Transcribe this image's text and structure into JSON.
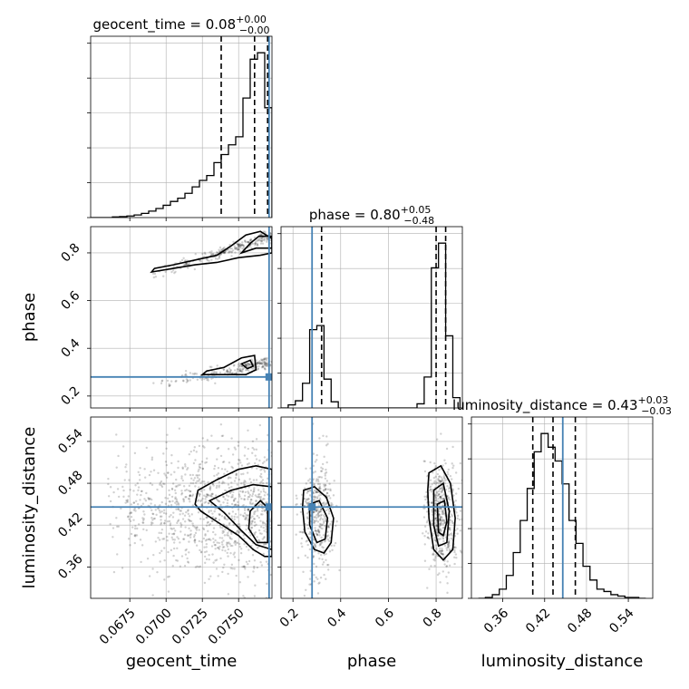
{
  "chart_data": {
    "type": "corner",
    "parameters": [
      {
        "name": "geocent_time",
        "axis_label": "geocent_time",
        "title_text": "geocent_time = 0.08",
        "title_plus": "+0.00",
        "title_minus": "−0.00",
        "range": [
          0.0648,
          0.0773
        ],
        "ticks": [
          0.0675,
          0.07,
          0.0725,
          0.075
        ],
        "tick_labels": [
          "0.0675",
          "0.0700",
          "0.0725",
          "0.0750"
        ],
        "truth": 0.0771,
        "quantiles": [
          0.0738,
          0.0761,
          0.077
        ],
        "hist_edges": [
          0.0648,
          0.0653,
          0.0658,
          0.0663,
          0.0668,
          0.0673,
          0.0678,
          0.0683,
          0.0688,
          0.0693,
          0.0698,
          0.0703,
          0.0708,
          0.0713,
          0.0718,
          0.0723,
          0.0728,
          0.0733,
          0.0738,
          0.0743,
          0.0748,
          0.0753,
          0.0758,
          0.0763,
          0.0768,
          0.0773
        ],
        "hist_counts": [
          0,
          0,
          0,
          0.2,
          0.3,
          0.5,
          0.8,
          1.3,
          2.0,
          2.8,
          3.8,
          5.0,
          6.0,
          7.5,
          9.5,
          11.5,
          13.0,
          17.0,
          19.5,
          22.5,
          25.0,
          37.0,
          49.0,
          51.0,
          34.0
        ]
      },
      {
        "name": "phase",
        "axis_label": "phase",
        "title_text": "phase = 0.80",
        "title_plus": "+0.05",
        "title_minus": "−0.48",
        "range": [
          0.15,
          0.91
        ],
        "ticks": [
          0.2,
          0.4,
          0.6,
          0.8
        ],
        "tick_labels": [
          "0.2",
          "0.4",
          "0.6",
          "0.8"
        ],
        "truth": 0.28,
        "quantiles": [
          0.32,
          0.8,
          0.84
        ],
        "hist_edges": [
          0.15,
          0.18,
          0.21,
          0.24,
          0.27,
          0.3,
          0.33,
          0.36,
          0.39,
          0.42,
          0.45,
          0.48,
          0.51,
          0.54,
          0.57,
          0.6,
          0.63,
          0.66,
          0.69,
          0.72,
          0.75,
          0.78,
          0.81,
          0.84,
          0.87,
          0.9
        ],
        "hist_counts": [
          0,
          1.5,
          3.5,
          12.0,
          38.0,
          40.0,
          14.0,
          3.0,
          0,
          0,
          0,
          0,
          0,
          0,
          0,
          0,
          0,
          0,
          0,
          2.0,
          15.0,
          68.0,
          80.0,
          35.0,
          5.0
        ]
      },
      {
        "name": "luminosity_distance",
        "axis_label": "luminosity_distance",
        "title_text": "luminosity_distance = 0.43",
        "title_plus": "+0.03",
        "title_minus": "−0.03",
        "range": [
          0.315,
          0.575
        ],
        "ticks": [
          0.36,
          0.42,
          0.48,
          0.54
        ],
        "tick_labels": [
          "0.36",
          "0.42",
          "0.48",
          "0.54"
        ],
        "truth": 0.446,
        "quantiles": [
          0.403,
          0.432,
          0.464
        ],
        "hist_edges": [
          0.325,
          0.335,
          0.345,
          0.355,
          0.365,
          0.375,
          0.385,
          0.395,
          0.405,
          0.415,
          0.425,
          0.435,
          0.445,
          0.455,
          0.465,
          0.475,
          0.485,
          0.495,
          0.505,
          0.515,
          0.525,
          0.535,
          0.545,
          0.555,
          0.565
        ],
        "hist_counts": [
          0,
          0.2,
          0.8,
          2.0,
          5.0,
          10.0,
          17.0,
          24.0,
          32.0,
          36.0,
          33.0,
          30.0,
          25.0,
          17.0,
          12.0,
          7.0,
          4.0,
          2.0,
          1.5,
          0.8,
          0.5,
          0.2,
          0.2,
          0
        ]
      }
    ],
    "pair_contours": [
      {
        "x_param": "geocent_time",
        "y_param": "phase",
        "levels": [
          [
            [
              0.069,
              0.72
            ],
            [
              0.0705,
              0.735
            ],
            [
              0.072,
              0.75
            ],
            [
              0.0735,
              0.76
            ],
            [
              0.075,
              0.78
            ],
            [
              0.0765,
              0.79
            ],
            [
              0.0773,
              0.8
            ],
            [
              0.0773,
              0.86
            ],
            [
              0.0765,
              0.89
            ],
            [
              0.0755,
              0.875
            ],
            [
              0.0745,
              0.83
            ],
            [
              0.0735,
              0.79
            ],
            [
              0.072,
              0.77
            ],
            [
              0.0705,
              0.75
            ],
            [
              0.0692,
              0.735
            ]
          ],
          [
            [
              0.0752,
              0.8
            ],
            [
              0.0762,
              0.82
            ],
            [
              0.0773,
              0.82
            ],
            [
              0.0773,
              0.87
            ],
            [
              0.0764,
              0.87
            ],
            [
              0.0758,
              0.84
            ]
          ],
          [
            [
              0.0725,
              0.29
            ],
            [
              0.074,
              0.29
            ],
            [
              0.0755,
              0.29
            ],
            [
              0.0762,
              0.31
            ],
            [
              0.0761,
              0.37
            ],
            [
              0.0752,
              0.36
            ],
            [
              0.074,
              0.32
            ],
            [
              0.0728,
              0.305
            ]
          ],
          [
            [
              0.0756,
              0.315
            ],
            [
              0.076,
              0.325
            ],
            [
              0.0758,
              0.35
            ],
            [
              0.0752,
              0.335
            ]
          ]
        ]
      },
      {
        "x_param": "geocent_time",
        "y_param": "luminosity_distance",
        "levels": [
          [
            [
              0.072,
              0.45
            ],
            [
              0.0722,
              0.47
            ],
            [
              0.0735,
              0.485
            ],
            [
              0.075,
              0.5
            ],
            [
              0.0762,
              0.505
            ],
            [
              0.0773,
              0.5
            ],
            [
              0.0773,
              0.375
            ],
            [
              0.0768,
              0.375
            ],
            [
              0.076,
              0.385
            ],
            [
              0.075,
              0.405
            ],
            [
              0.0735,
              0.425
            ],
            [
              0.0724,
              0.44
            ]
          ],
          [
            [
              0.073,
              0.455
            ],
            [
              0.0745,
              0.47
            ],
            [
              0.076,
              0.478
            ],
            [
              0.0773,
              0.475
            ],
            [
              0.0773,
              0.385
            ],
            [
              0.0762,
              0.392
            ],
            [
              0.0752,
              0.412
            ],
            [
              0.074,
              0.438
            ]
          ],
          [
            [
              0.0758,
              0.44
            ],
            [
              0.0765,
              0.455
            ],
            [
              0.077,
              0.445
            ],
            [
              0.077,
              0.395
            ],
            [
              0.0763,
              0.395
            ],
            [
              0.0757,
              0.415
            ]
          ]
        ]
      },
      {
        "x_param": "phase",
        "y_param": "luminosity_distance",
        "levels": [
          [
            [
              0.245,
              0.47
            ],
            [
              0.29,
              0.475
            ],
            [
              0.34,
              0.46
            ],
            [
              0.37,
              0.43
            ],
            [
              0.36,
              0.395
            ],
            [
              0.33,
              0.38
            ],
            [
              0.29,
              0.385
            ],
            [
              0.25,
              0.41
            ],
            [
              0.24,
              0.445
            ]
          ],
          [
            [
              0.27,
              0.45
            ],
            [
              0.31,
              0.455
            ],
            [
              0.345,
              0.43
            ],
            [
              0.335,
              0.4
            ],
            [
              0.3,
              0.395
            ],
            [
              0.27,
              0.42
            ]
          ],
          [
            [
              0.77,
              0.495
            ],
            [
              0.82,
              0.505
            ],
            [
              0.86,
              0.48
            ],
            [
              0.88,
              0.43
            ],
            [
              0.87,
              0.385
            ],
            [
              0.83,
              0.37
            ],
            [
              0.79,
              0.385
            ],
            [
              0.77,
              0.43
            ],
            [
              0.765,
              0.47
            ]
          ],
          [
            [
              0.79,
              0.47
            ],
            [
              0.83,
              0.48
            ],
            [
              0.855,
              0.44
            ],
            [
              0.845,
              0.395
            ],
            [
              0.81,
              0.39
            ],
            [
              0.79,
              0.42
            ]
          ],
          [
            [
              0.805,
              0.45
            ],
            [
              0.835,
              0.455
            ],
            [
              0.845,
              0.425
            ],
            [
              0.83,
              0.405
            ],
            [
              0.81,
              0.41
            ]
          ]
        ]
      }
    ]
  }
}
